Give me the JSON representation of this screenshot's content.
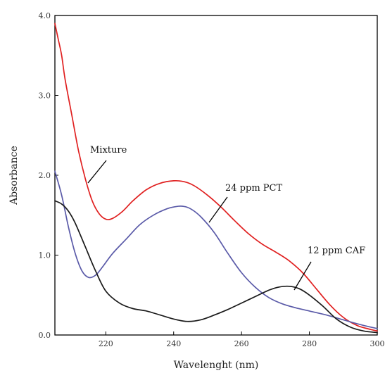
{
  "chart_data": {
    "type": "line",
    "title": "",
    "xlabel": "Wavelenght (nm)",
    "ylabel": "Absorbance",
    "xlim": [
      205,
      300
    ],
    "ylim": [
      0.0,
      4.0
    ],
    "x_ticks": [
      220,
      240,
      260,
      280,
      300
    ],
    "x_tick_labels": [
      "220",
      "240",
      "260",
      "280",
      "300"
    ],
    "y_ticks": [
      0.0,
      1.0,
      2.0,
      3.0,
      4.0
    ],
    "y_tick_labels": [
      "0.0",
      "1.0",
      "2.0",
      "3.0",
      "4.0"
    ],
    "grid": false,
    "legend": "none",
    "series": [
      {
        "name": "Mixture",
        "color": "#e02020",
        "x": [
          205,
          206,
          207,
          208,
          210,
          212,
          214,
          216,
          218,
          220,
          222,
          225,
          228,
          232,
          236,
          240,
          243,
          246,
          250,
          254,
          258,
          262,
          266,
          270,
          274,
          278,
          282,
          286,
          290,
          294,
          298,
          300
        ],
        "y": [
          3.9,
          3.7,
          3.5,
          3.2,
          2.75,
          2.3,
          1.95,
          1.68,
          1.52,
          1.45,
          1.46,
          1.55,
          1.68,
          1.82,
          1.9,
          1.93,
          1.92,
          1.87,
          1.75,
          1.6,
          1.43,
          1.27,
          1.14,
          1.04,
          0.93,
          0.78,
          0.58,
          0.38,
          0.22,
          0.12,
          0.07,
          0.05
        ]
      },
      {
        "name": "24 ppm PCT",
        "color": "#5a5aa8",
        "x": [
          205,
          207,
          209,
          211,
          213,
          215,
          217,
          219,
          222,
          226,
          230,
          234,
          238,
          241,
          243,
          245,
          248,
          252,
          256,
          260,
          264,
          268,
          272,
          276,
          280,
          285,
          290,
          295,
          300
        ],
        "y": [
          2.05,
          1.75,
          1.35,
          1.02,
          0.8,
          0.72,
          0.75,
          0.85,
          1.02,
          1.2,
          1.38,
          1.5,
          1.58,
          1.61,
          1.61,
          1.58,
          1.48,
          1.28,
          1.02,
          0.78,
          0.6,
          0.47,
          0.39,
          0.34,
          0.3,
          0.25,
          0.19,
          0.13,
          0.08
        ]
      },
      {
        "name": "12 ppm CAF",
        "color": "#1a1a1a",
        "x": [
          205,
          207,
          209,
          211,
          214,
          217,
          220,
          224,
          228,
          232,
          236,
          240,
          244,
          248,
          252,
          256,
          260,
          264,
          268,
          271,
          274,
          277,
          280,
          284,
          288,
          292,
          296,
          300
        ],
        "y": [
          1.68,
          1.64,
          1.55,
          1.4,
          1.1,
          0.8,
          0.55,
          0.4,
          0.33,
          0.3,
          0.25,
          0.2,
          0.17,
          0.19,
          0.25,
          0.32,
          0.4,
          0.48,
          0.56,
          0.6,
          0.61,
          0.58,
          0.5,
          0.36,
          0.2,
          0.1,
          0.05,
          0.03
        ]
      }
    ],
    "annotations": [
      {
        "text": "Mixture",
        "series": "Mixture"
      },
      {
        "text": "24 ppm PCT",
        "series": "24 ppm PCT"
      },
      {
        "text": "12 ppm CAF",
        "series": "12 ppm CAF"
      }
    ]
  }
}
